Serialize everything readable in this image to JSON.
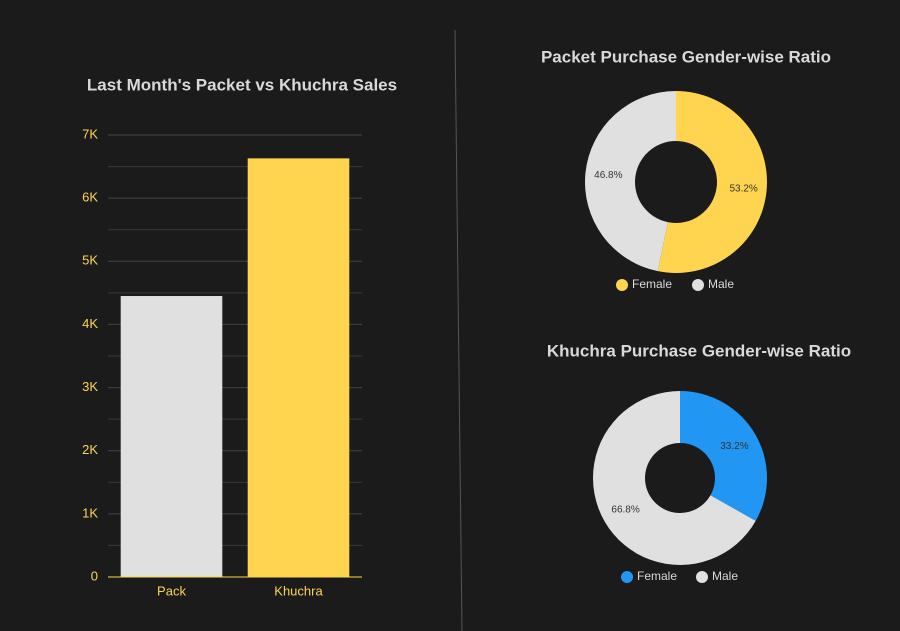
{
  "chart_data": [
    {
      "type": "bar",
      "title": "Last Month's Packet vs Khuchra Sales",
      "categories": [
        "Pack",
        "Khuchra"
      ],
      "values": [
        4450,
        6630
      ],
      "colors": [
        "#e0e0e0",
        "#ffd54f"
      ],
      "ylim": [
        0,
        7000
      ],
      "yticks": [
        0,
        {
          "value": 1000,
          "label": "1K"
        },
        {
          "value": 2000,
          "label": "2K"
        },
        {
          "value": 3000,
          "label": "3K"
        },
        {
          "value": 4000,
          "label": "4K"
        },
        {
          "value": 5000,
          "label": "5K"
        },
        {
          "value": 6000,
          "label": "6K"
        },
        {
          "value": 7000,
          "label": "7K"
        }
      ],
      "minor_yticks": [
        500,
        1500,
        2500,
        3500,
        4500,
        5500,
        6500
      ],
      "grid": true
    },
    {
      "type": "pie",
      "title": "Packet Purchase Gender-wise Ratio",
      "categories": [
        "Female",
        "Male"
      ],
      "values": [
        53.2,
        46.8
      ],
      "value_labels": [
        "53.2%",
        "46.8%"
      ],
      "colors": [
        "#ffd54f",
        "#e0e0e0"
      ]
    },
    {
      "type": "pie",
      "title": "Khuchra Purchase Gender-wise Ratio",
      "categories": [
        "Female",
        "Male"
      ],
      "values": [
        33.2,
        66.8
      ],
      "value_labels": [
        "33.2%",
        "66.8%"
      ],
      "colors": [
        "#2196f3",
        "#e0e0e0"
      ]
    }
  ]
}
